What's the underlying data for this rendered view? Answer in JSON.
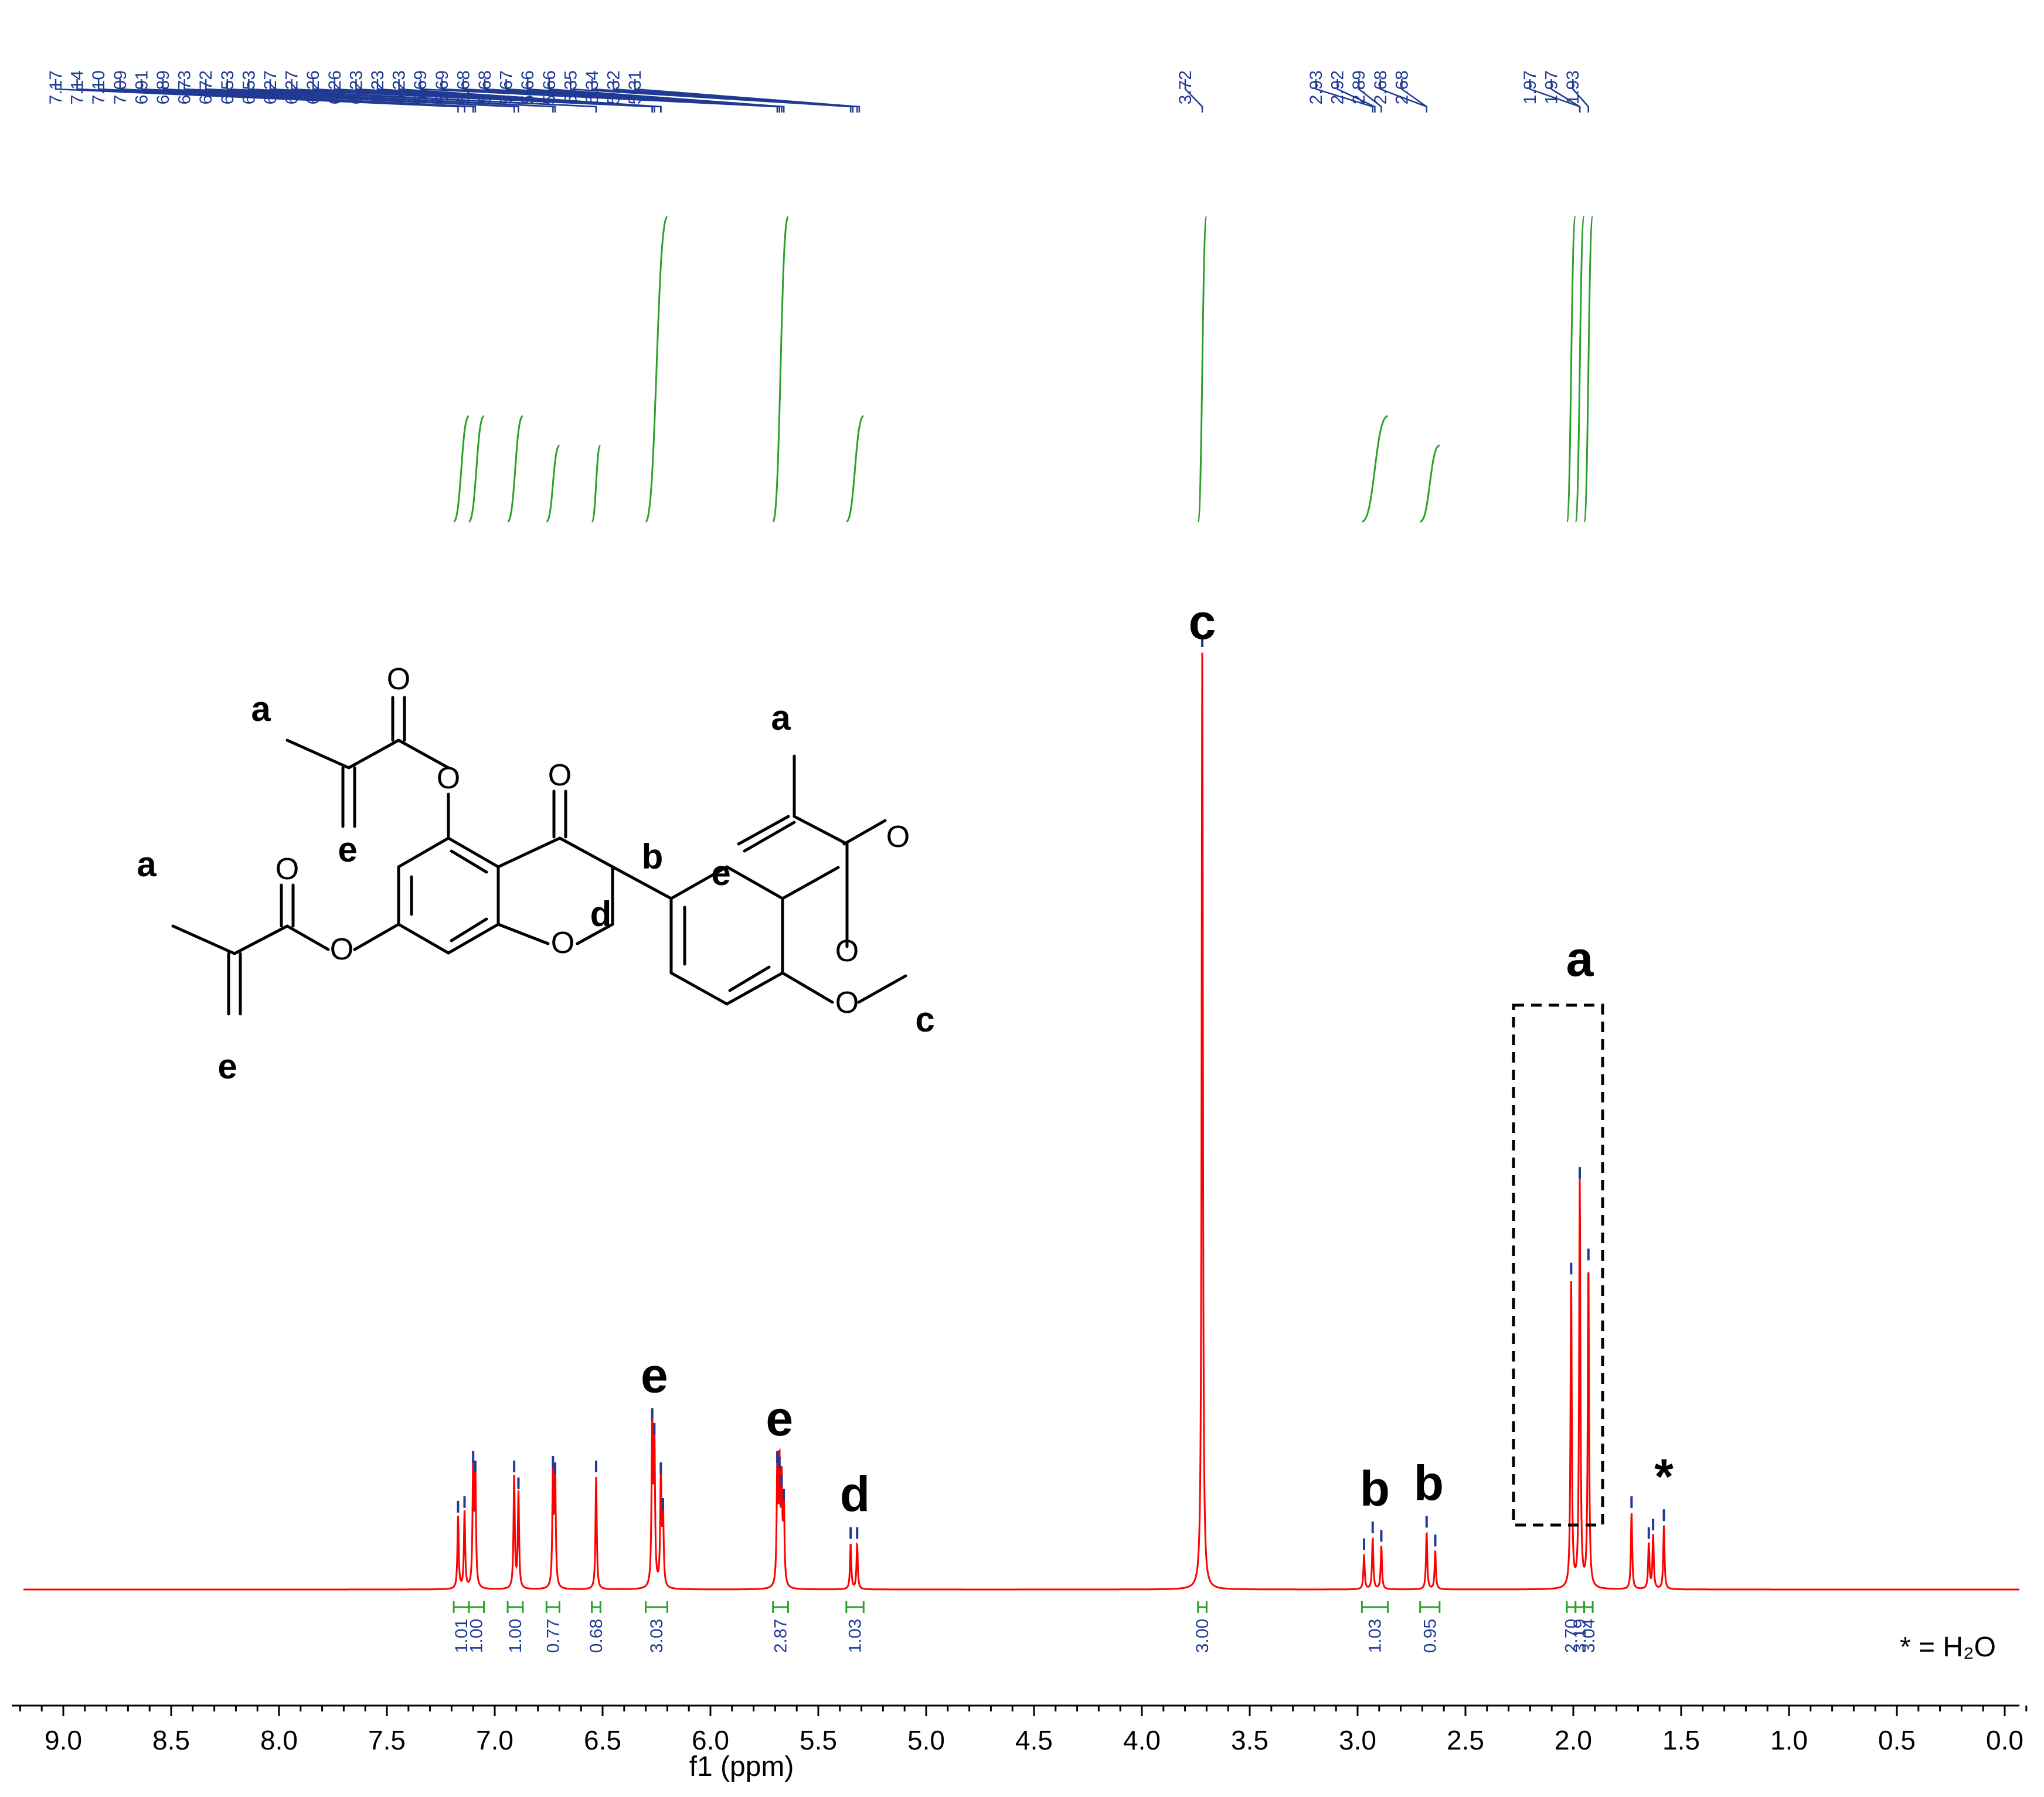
{
  "chart_data": {
    "type": "line",
    "title": "",
    "xlabel": "f1 (ppm)",
    "ylabel": "",
    "xlim": [
      9.2,
      -0.1
    ],
    "x_axis_reversed": true,
    "grid": false,
    "series_colors": {
      "spectrum": "#ff0000",
      "integral": "#2ca02c",
      "peak_labels": "#1f3a93",
      "structure": "#000000"
    },
    "x_ticks": [
      "9.0",
      "8.5",
      "8.0",
      "7.5",
      "7.0",
      "6.5",
      "6.0",
      "5.5",
      "5.0",
      "4.5",
      "4.0",
      "3.5",
      "3.0",
      "2.5",
      "2.0",
      "1.5",
      "1.0",
      "0.5",
      "0.0"
    ],
    "peak_labels": [
      "7.17",
      "7.14",
      "7.10",
      "7.09",
      "6.91",
      "6.89",
      "6.73",
      "6.72",
      "6.53",
      "6.53",
      "6.27",
      "6.27",
      "6.26",
      "6.26",
      "6.23",
      "6.23",
      "6.23",
      "5.69",
      "5.69",
      "5.68",
      "5.68",
      "5.67",
      "5.66",
      "5.66",
      "5.35",
      "5.34",
      "5.32",
      "5.31",
      "3.72",
      "2.93",
      "2.92",
      "2.89",
      "2.68",
      "2.68",
      "1.97",
      "1.97",
      "1.93"
    ],
    "peaks": [
      {
        "ppm": 7.17,
        "height": 0.077
      },
      {
        "ppm": 7.14,
        "height": 0.082
      },
      {
        "ppm": 7.1,
        "height": 0.13
      },
      {
        "ppm": 7.09,
        "height": 0.12
      },
      {
        "ppm": 6.91,
        "height": 0.12
      },
      {
        "ppm": 6.89,
        "height": 0.102
      },
      {
        "ppm": 6.73,
        "height": 0.125
      },
      {
        "ppm": 6.72,
        "height": 0.118
      },
      {
        "ppm": 6.53,
        "height": 0.12
      },
      {
        "ppm": 6.27,
        "height": 0.176
      },
      {
        "ppm": 6.26,
        "height": 0.16
      },
      {
        "ppm": 6.23,
        "height": 0.118
      },
      {
        "ppm": 6.22,
        "height": 0.08
      },
      {
        "ppm": 5.69,
        "height": 0.13
      },
      {
        "ppm": 5.68,
        "height": 0.124
      },
      {
        "ppm": 5.67,
        "height": 0.105
      },
      {
        "ppm": 5.66,
        "height": 0.09
      },
      {
        "ppm": 5.35,
        "height": 0.049
      },
      {
        "ppm": 5.32,
        "height": 0.049
      },
      {
        "ppm": 3.72,
        "height": 1.0
      },
      {
        "ppm": 2.97,
        "height": 0.037
      },
      {
        "ppm": 2.93,
        "height": 0.055
      },
      {
        "ppm": 2.89,
        "height": 0.046
      },
      {
        "ppm": 2.68,
        "height": 0.061
      },
      {
        "ppm": 2.64,
        "height": 0.041
      },
      {
        "ppm": 2.01,
        "height": 0.331
      },
      {
        "ppm": 1.97,
        "height": 0.433
      },
      {
        "ppm": 1.93,
        "height": 0.346
      },
      {
        "ppm": 1.73,
        "height": 0.082
      },
      {
        "ppm": 1.65,
        "height": 0.049
      },
      {
        "ppm": 1.63,
        "height": 0.058
      },
      {
        "ppm": 1.58,
        "height": 0.068
      }
    ],
    "integrals": [
      {
        "from": 7.19,
        "to": 7.12,
        "value": "1.01"
      },
      {
        "from": 7.12,
        "to": 7.05,
        "value": "1.00"
      },
      {
        "from": 6.94,
        "to": 6.87,
        "value": "1.00"
      },
      {
        "from": 6.76,
        "to": 6.7,
        "value": "0.77"
      },
      {
        "from": 6.55,
        "to": 6.51,
        "value": "0.68"
      },
      {
        "from": 6.3,
        "to": 6.2,
        "value": "3.03"
      },
      {
        "from": 5.71,
        "to": 5.64,
        "value": "2.87"
      },
      {
        "from": 5.37,
        "to": 5.29,
        "value": "1.03"
      },
      {
        "from": 3.74,
        "to": 3.7,
        "value": "3.00"
      },
      {
        "from": 2.98,
        "to": 2.86,
        "value": "1.03"
      },
      {
        "from": 2.71,
        "to": 2.62,
        "value": "0.95"
      },
      {
        "from": 2.03,
        "to": 1.99,
        "value": "2.70"
      },
      {
        "from": 1.99,
        "to": 1.95,
        "value": "3.19"
      },
      {
        "from": 1.95,
        "to": 1.91,
        "value": "3.04"
      }
    ],
    "assignment_labels": [
      {
        "ppm": 3.72,
        "text": "c"
      },
      {
        "ppm": 6.26,
        "text": "e"
      },
      {
        "ppm": 5.68,
        "text": "e"
      },
      {
        "ppm": 5.33,
        "text": "d"
      },
      {
        "ppm": 2.92,
        "text": "b"
      },
      {
        "ppm": 2.67,
        "text": "b"
      },
      {
        "ppm": 1.97,
        "text": "a"
      },
      {
        "ppm": 1.58,
        "text": "*"
      }
    ],
    "solvent_note": "* = H₂O",
    "structure_labels": [
      "a",
      "a",
      "a",
      "b",
      "c",
      "d",
      "e",
      "e",
      "e"
    ]
  }
}
